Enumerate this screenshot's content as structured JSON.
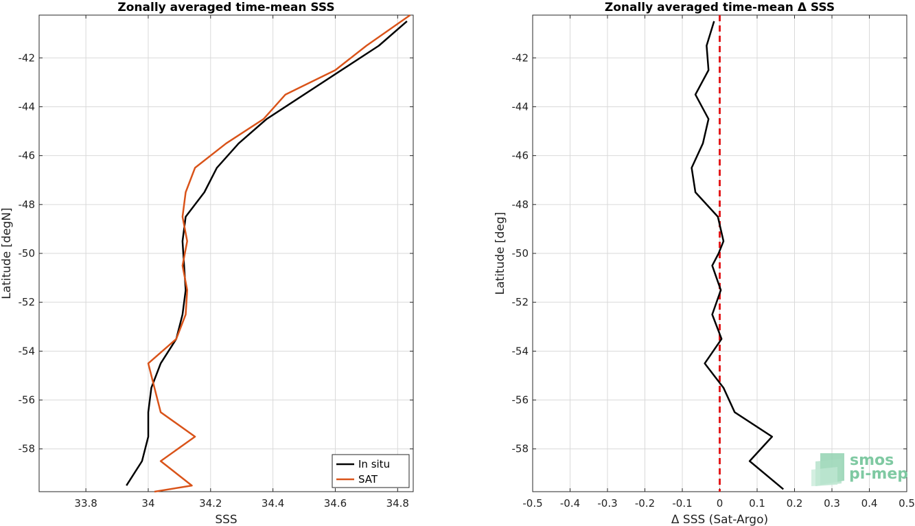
{
  "chart_data": [
    {
      "type": "line",
      "title": "Zonally averaged time-mean SSS",
      "xlabel": "SSS",
      "ylabel": "Latitude [degN]",
      "xlim": [
        33.65,
        34.85
      ],
      "ylim": [
        -59.75,
        -40.25
      ],
      "xticks": [
        33.8,
        34,
        34.2,
        34.4,
        34.6,
        34.8
      ],
      "xtick_labels": [
        "33.8",
        "34",
        "34.2",
        "34.4",
        "34.6",
        "34.8"
      ],
      "yticks": [
        -58,
        -56,
        -54,
        -52,
        -50,
        -48,
        -46,
        -44,
        -42
      ],
      "ytick_labels": [
        "-58",
        "-56",
        "-54",
        "-52",
        "-50",
        "-48",
        "-46",
        "-44",
        "-42"
      ],
      "grid": true,
      "legend": "bottom-right",
      "series": [
        {
          "name": "In situ",
          "color": "#000000",
          "x": [
            33.93,
            33.98,
            34.0,
            34.0,
            34.01,
            34.04,
            34.09,
            34.11,
            34.12,
            34.115,
            34.11,
            34.12,
            34.18,
            34.22,
            34.29,
            34.38,
            34.5,
            34.62,
            34.74,
            34.83
          ],
          "y": [
            -59.5,
            -58.5,
            -57.5,
            -56.5,
            -55.5,
            -54.5,
            -53.5,
            -52.5,
            -51.5,
            -50.5,
            -49.5,
            -48.5,
            -47.5,
            -46.5,
            -45.5,
            -44.5,
            -43.5,
            -42.5,
            -41.5,
            -40.5
          ]
        },
        {
          "name": "SAT",
          "color": "#d95319",
          "x": [
            34.02,
            34.14,
            34.04,
            34.15,
            34.04,
            34.02,
            34.0,
            34.09,
            34.12,
            34.125,
            34.11,
            34.125,
            34.11,
            34.12,
            34.15,
            34.25,
            34.37,
            34.44,
            34.6,
            34.7,
            34.84
          ],
          "y": [
            -59.75,
            -59.5,
            -58.5,
            -57.5,
            -56.5,
            -55.5,
            -54.5,
            -53.5,
            -52.5,
            -51.5,
            -50.5,
            -49.5,
            -48.5,
            -47.5,
            -46.5,
            -45.5,
            -44.5,
            -43.5,
            -42.5,
            -41.5,
            -40.25
          ]
        }
      ]
    },
    {
      "type": "line",
      "title": "Zonally averaged time-mean Δ SSS",
      "xlabel": "Δ SSS (Sat-Argo)",
      "ylabel": "Latitude [deg]",
      "xlim": [
        -0.5,
        0.5
      ],
      "ylim": [
        -59.75,
        -40.25
      ],
      "xticks": [
        -0.5,
        -0.4,
        -0.3,
        -0.2,
        -0.1,
        0,
        0.1,
        0.2,
        0.3,
        0.4,
        0.5
      ],
      "xtick_labels": [
        "-0.5",
        "-0.4",
        "-0.3",
        "-0.2",
        "-0.1",
        "0",
        "0.1",
        "0.2",
        "0.3",
        "0.4",
        "0.5"
      ],
      "yticks": [
        -58,
        -56,
        -54,
        -52,
        -50,
        -48,
        -46,
        -44,
        -42
      ],
      "ytick_labels": [
        "-58",
        "-56",
        "-54",
        "-52",
        "-50",
        "-48",
        "-46",
        "-44",
        "-42"
      ],
      "grid": true,
      "zero_line": {
        "x": 0,
        "color": "#e31a1c",
        "style": "dashed"
      },
      "series": [
        {
          "name": "",
          "color": "#000000",
          "x": [
            0.17,
            0.08,
            0.14,
            0.04,
            0.01,
            -0.04,
            0.005,
            -0.02,
            0.003,
            -0.02,
            -0.003,
            0.01,
            -0.005,
            -0.065,
            -0.075,
            -0.045,
            -0.03,
            -0.065,
            -0.03,
            -0.035,
            -0.015
          ],
          "y": [
            -59.65,
            -58.5,
            -57.5,
            -56.5,
            -55.5,
            -54.5,
            -53.5,
            -52.5,
            -51.5,
            -50.5,
            -50.0,
            -49.5,
            -48.5,
            -47.5,
            -46.5,
            -45.5,
            -44.5,
            -43.5,
            -42.5,
            -41.5,
            -40.5
          ]
        }
      ]
    }
  ],
  "logo": {
    "line1": "smos",
    "line2": "pi-mep",
    "color": "#7fc9a2"
  }
}
